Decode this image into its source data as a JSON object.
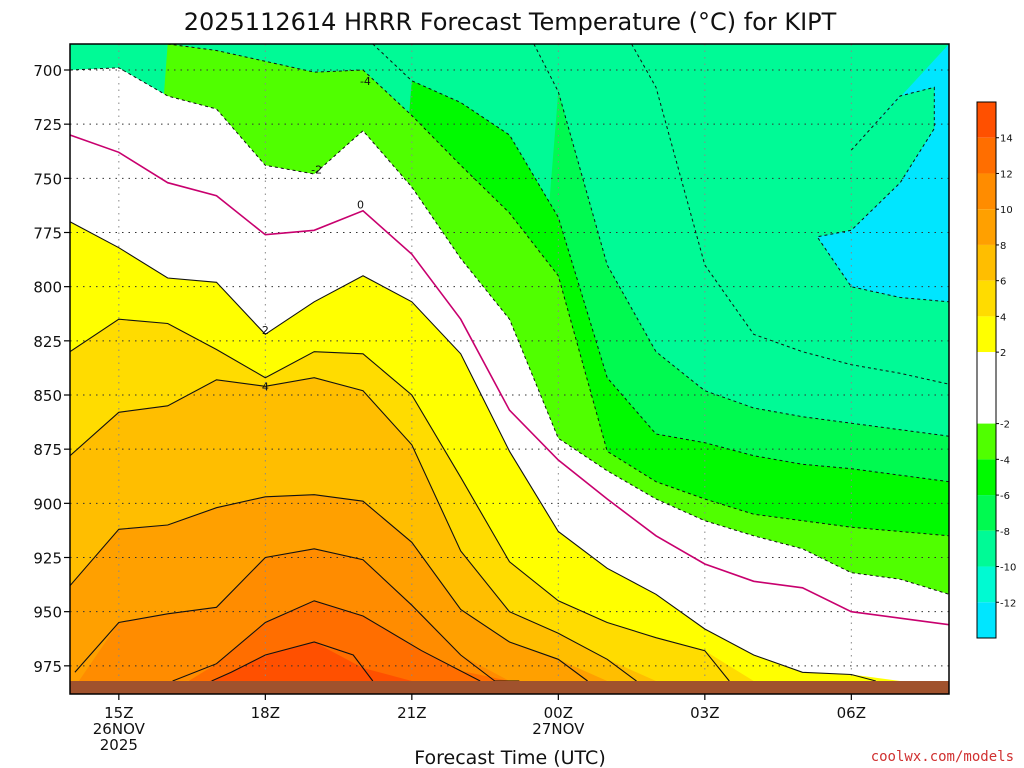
{
  "chart_data": {
    "type": "heatmap",
    "title": "2025112614 HRRR Forecast Temperature (°C) for KIPT",
    "xlabel": "Forecast Time (UTC)",
    "ylabel": "",
    "credit": "coolwx.com/models",
    "x_ticks": [
      {
        "hour": 15,
        "lines": [
          "15Z",
          "26NOV",
          "2025"
        ]
      },
      {
        "hour": 18,
        "lines": [
          "18Z"
        ]
      },
      {
        "hour": 21,
        "lines": [
          "21Z"
        ]
      },
      {
        "hour": 24,
        "lines": [
          "00Z",
          "27NOV"
        ]
      },
      {
        "hour": 27,
        "lines": [
          "03Z"
        ]
      },
      {
        "hour": 30,
        "lines": [
          "06Z"
        ]
      }
    ],
    "xlim": [
      14,
      32
    ],
    "ylim_hPa": [
      688,
      988
    ],
    "y_ticks": [
      700,
      725,
      750,
      775,
      800,
      825,
      850,
      875,
      900,
      925,
      950,
      975
    ],
    "surface_pressure_hPa": 982,
    "grid": true,
    "colorbar": {
      "ticks": [
        14,
        12,
        10,
        8,
        6,
        4,
        2,
        -2,
        -4,
        -6,
        -8,
        -10,
        -12
      ],
      "bands": [
        {
          "from": 14,
          "to": 16,
          "color": "#ff5000"
        },
        {
          "from": 12,
          "to": 14,
          "color": "#ff6e00"
        },
        {
          "from": 10,
          "to": 12,
          "color": "#ff8c00"
        },
        {
          "from": 8,
          "to": 10,
          "color": "#ffa000"
        },
        {
          "from": 6,
          "to": 8,
          "color": "#ffbe00"
        },
        {
          "from": 4,
          "to": 6,
          "color": "#ffdc00"
        },
        {
          "from": 2,
          "to": 4,
          "color": "#ffff00"
        },
        {
          "from": -2,
          "to": 2,
          "color": "#ffffff"
        },
        {
          "from": -4,
          "to": -2,
          "color": "#50ff00"
        },
        {
          "from": -6,
          "to": -4,
          "color": "#00fa00"
        },
        {
          "from": -8,
          "to": -6,
          "color": "#00fa50"
        },
        {
          "from": -10,
          "to": -8,
          "color": "#00fa96"
        },
        {
          "from": -12,
          "to": -10,
          "color": "#00fad2"
        },
        {
          "from": -14,
          "to": -12,
          "color": "#00e6ff"
        }
      ]
    },
    "contour_labels": [
      {
        "text": "-4",
        "hour": 20.05,
        "p": 705
      },
      {
        "text": "-2",
        "hour": 19.05,
        "p": 746
      },
      {
        "text": "0",
        "hour": 19.95,
        "p": 762
      },
      {
        "text": "2",
        "hour": 18.0,
        "p": 820
      },
      {
        "text": "4",
        "hour": 18.0,
        "p": 846
      }
    ],
    "hours": [
      14,
      15,
      16,
      17,
      18,
      19,
      20,
      21,
      22,
      23,
      24,
      25,
      26,
      27,
      28,
      29,
      30,
      31,
      32
    ],
    "isotherms": [
      {
        "value": 14,
        "hour": [
          16.9,
          17.3,
          18.0,
          19.0,
          19.8,
          20.2
        ],
        "p": [
          982,
          978,
          970,
          964,
          970,
          982
        ]
      },
      {
        "value": 12,
        "hour": [
          16.1,
          17.0,
          18.0,
          19.0,
          20.0,
          21.2,
          22.4
        ],
        "p": [
          982,
          974,
          955,
          945,
          952,
          968,
          982
        ]
      },
      {
        "value": 10,
        "hour": [
          14.1,
          15.0,
          16.0,
          17.0,
          18.0,
          19.0,
          20.0,
          21.0,
          22.0,
          22.7,
          23.2
        ],
        "p": [
          978,
          955,
          951,
          948,
          925,
          921,
          926,
          947,
          970,
          982,
          982
        ]
      },
      {
        "value": 8,
        "hour": [
          14.0,
          15.0,
          16.0,
          17.0,
          18.0,
          19.0,
          20.0,
          21.0,
          22.0,
          23.0,
          24.0,
          24.6
        ],
        "p": [
          938,
          912,
          910,
          902,
          897,
          896,
          899,
          918,
          949,
          964,
          972,
          982
        ]
      },
      {
        "value": 6,
        "hour": [
          14.0,
          15.0,
          16.0,
          17.0,
          18.0,
          19.0,
          20.0,
          21.0,
          22.0,
          23.0,
          24.0,
          25.0,
          25.6
        ],
        "p": [
          878,
          858,
          855,
          843,
          846,
          842,
          848,
          873,
          922,
          950,
          960,
          972,
          982
        ]
      },
      {
        "value": 4,
        "hour": [
          14.0,
          15.0,
          16.0,
          17.0,
          18.0,
          19.0,
          20.0,
          21.0,
          22.0,
          23.0,
          24.0,
          25.0,
          26.0,
          27.0,
          27.5
        ],
        "p": [
          830,
          815,
          817,
          829,
          842,
          830,
          831,
          850,
          888,
          927,
          945,
          955,
          962,
          968,
          982
        ]
      },
      {
        "value": 2,
        "hour": [
          14.0,
          15.0,
          16.0,
          17.0,
          18.0,
          19.0,
          20.0,
          21.0,
          22.0,
          23.0,
          24.0,
          25.0,
          26.0,
          27.0,
          28.0,
          29.0,
          30.0,
          30.5
        ],
        "p": [
          770,
          782,
          796,
          798,
          822,
          807,
          795,
          807,
          831,
          876,
          913,
          930,
          942,
          958,
          970,
          978,
          979,
          982
        ]
      },
      {
        "value": 0,
        "hour": [
          14.0,
          15.0,
          16.0,
          17.0,
          18.0,
          19.0,
          20.0,
          21.0,
          22.0,
          23.0,
          24.0,
          25.0,
          26.0,
          27.0,
          28.0,
          29.0,
          30.0,
          31.0,
          32.0
        ],
        "p": [
          730,
          738,
          752,
          758,
          776,
          774,
          765,
          785,
          815,
          857,
          880,
          898,
          915,
          928,
          936,
          939,
          950,
          953,
          956
        ]
      },
      {
        "value": -2,
        "hour": [
          14.0,
          15.0,
          16.0,
          17.0,
          18.0,
          19.0,
          20.0,
          21.0,
          22.0,
          23.0,
          24.0,
          25.0,
          26.0,
          27.0,
          28.0,
          29.0,
          30.0,
          31.0,
          32.0
        ],
        "p": [
          700,
          699,
          712,
          718,
          744,
          748,
          728,
          754,
          787,
          815,
          870,
          885,
          898,
          908,
          915,
          921,
          932,
          935,
          942
        ]
      },
      {
        "value": -4,
        "hour": [
          16.0,
          17.0,
          18.0,
          19.0,
          20.0,
          21.0,
          22.0,
          23.0,
          24.0,
          25.0,
          26.0,
          27.0,
          28.0,
          29.0,
          30.0,
          31.0,
          32.0
        ],
        "p": [
          688,
          691,
          696,
          701,
          700,
          721,
          744,
          766,
          795,
          876,
          890,
          898,
          905,
          908,
          911,
          913,
          915
        ]
      },
      {
        "value": -6,
        "hour": [
          20.2,
          21.0,
          22.0,
          23.0,
          24.0,
          25.0,
          26.0,
          27.0,
          28.0,
          29.0,
          30.0,
          31.0,
          32.0
        ],
        "p": [
          688,
          705,
          715,
          730,
          768,
          842,
          868,
          872,
          878,
          882,
          884,
          887,
          890
        ]
      },
      {
        "value": -8,
        "hour": [
          23.5,
          24.0,
          25.0,
          26.0,
          27.0,
          28.0,
          29.0,
          30.0,
          31.0,
          32.0
        ],
        "p": [
          688,
          710,
          790,
          830,
          848,
          856,
          860,
          863,
          866,
          869
        ]
      },
      {
        "value": -10,
        "hour": [
          25.5,
          26.0,
          27.0,
          28.0,
          29.0,
          30.0,
          31.0,
          32.0
        ],
        "p": [
          688,
          708,
          790,
          822,
          830,
          836,
          840,
          845
        ]
      },
      {
        "value": -12,
        "hour": [
          30.0,
          31.0,
          31.7,
          31.7,
          31.0,
          30.0,
          29.3,
          30.0,
          31.0,
          32.0
        ],
        "p": [
          737,
          712,
          708,
          727,
          752,
          774,
          777,
          800,
          805,
          807
        ]
      }
    ]
  }
}
